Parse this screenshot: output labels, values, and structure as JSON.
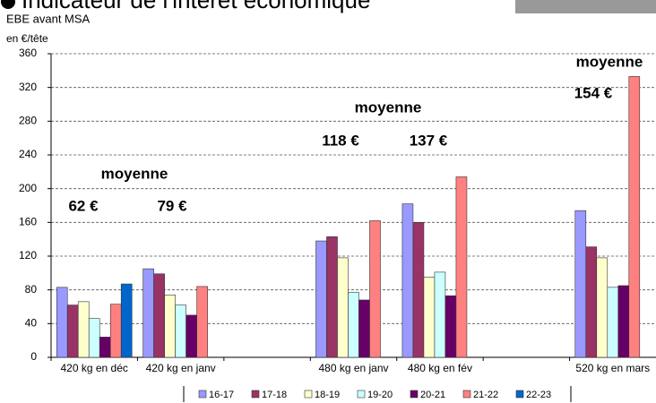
{
  "chart_data": {
    "type": "bar",
    "title": "Indicateur de l'intérêt économique",
    "y_label_line1": "EBE avant MSA",
    "y_label_line2": "en €/tête",
    "categories": [
      "420 kg en déc",
      "420 kg en janv",
      null,
      "480 kg en janv",
      "480 kg en fév",
      null,
      "520 kg en mars"
    ],
    "series": [
      {
        "name": "16-17",
        "color": "#9999ff",
        "values": [
          83,
          105,
          null,
          138,
          182,
          null,
          174
        ]
      },
      {
        "name": "17-18",
        "color": "#993366",
        "values": [
          62,
          99,
          null,
          143,
          160,
          null,
          131
        ]
      },
      {
        "name": "18-19",
        "color": "#ffffcc",
        "values": [
          66,
          74,
          null,
          118,
          95,
          null,
          118
        ]
      },
      {
        "name": "19-20",
        "color": "#ccffff",
        "values": [
          46,
          62,
          null,
          77,
          101,
          null,
          83
        ]
      },
      {
        "name": "20-21",
        "color": "#660066",
        "values": [
          24,
          50,
          null,
          68,
          73,
          null,
          85
        ]
      },
      {
        "name": "21-22",
        "color": "#ff8080",
        "values": [
          63,
          84,
          null,
          162,
          214,
          null,
          333
        ]
      },
      {
        "name": "22-23",
        "color": "#0066cc",
        "values": [
          87,
          null,
          null,
          null,
          null,
          null,
          null
        ]
      }
    ],
    "annotations": [
      "moyenne",
      "62 €",
      "79 €",
      "moyenne",
      "118 €",
      "137 €",
      "moyenne",
      "154 €"
    ],
    "ylim": [
      0,
      360
    ],
    "yticks": [
      0,
      40,
      80,
      120,
      160,
      200,
      240,
      280,
      320,
      360
    ],
    "grid": true,
    "legend": "bottom"
  }
}
